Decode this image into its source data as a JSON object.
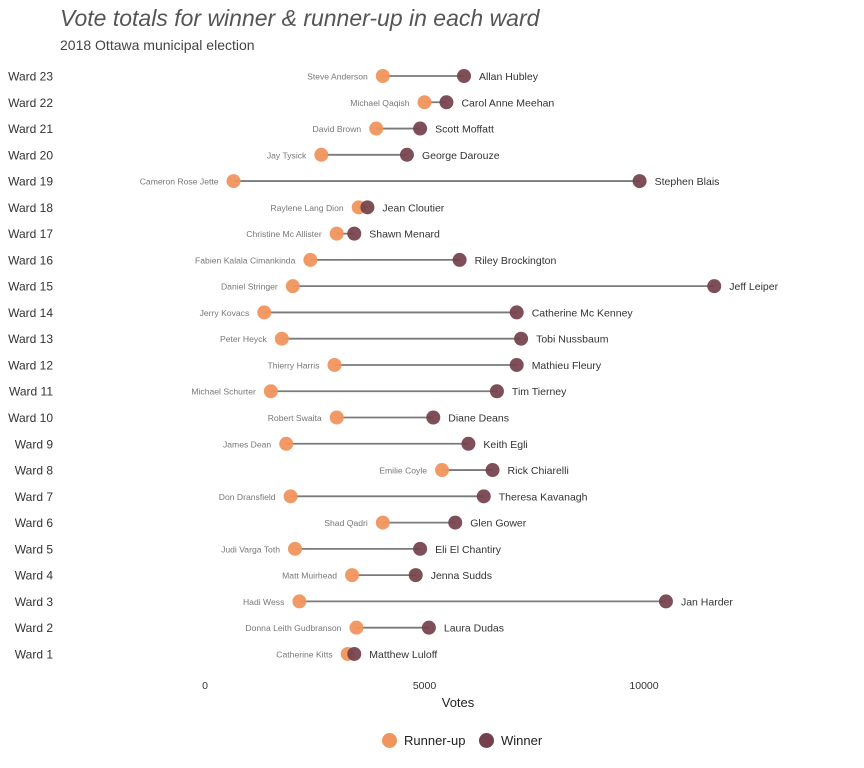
{
  "title": "Vote totals for winner & runner-up in each ward",
  "subtitle": "2018 Ottawa municipal election",
  "colors": {
    "runner_up": "#F0955E",
    "winner": "#74404B",
    "segment": "#7a7a7a",
    "ward_label": "#333333",
    "runner_label": "#777777",
    "winner_label": "#333333"
  },
  "legend": {
    "runner_up": "Runner-up",
    "winner": "Winner"
  },
  "chart_data": {
    "type": "dumbbell",
    "xlabel": "Votes",
    "ylabel": "",
    "xlim": [
      -4500,
      14500
    ],
    "xticks": [
      0,
      5000,
      10000
    ],
    "grid": false,
    "legend_position": "bottom",
    "series": [
      {
        "name": "Runner-up"
      },
      {
        "name": "Winner"
      }
    ],
    "wards": [
      {
        "ward": "Ward 23",
        "runner_up": "Steve Anderson",
        "runner_up_votes": 4050,
        "winner": "Allan Hubley",
        "winner_votes": 5900
      },
      {
        "ward": "Ward 22",
        "runner_up": "Michael Qaqish",
        "runner_up_votes": 5000,
        "winner": "Carol Anne Meehan",
        "winner_votes": 5500
      },
      {
        "ward": "Ward 21",
        "runner_up": "David Brown",
        "runner_up_votes": 3900,
        "winner": "Scott Moffatt",
        "winner_votes": 4900
      },
      {
        "ward": "Ward 20",
        "runner_up": "Jay Tysick",
        "runner_up_votes": 2650,
        "winner": "George Darouze",
        "winner_votes": 4600
      },
      {
        "ward": "Ward 19",
        "runner_up": "Cameron Rose Jette",
        "runner_up_votes": 650,
        "winner": "Stephen Blais",
        "winner_votes": 9900
      },
      {
        "ward": "Ward 18",
        "runner_up": "Raylene Lang Dion",
        "runner_up_votes": 3500,
        "winner": "Jean Cloutier",
        "winner_votes": 3700
      },
      {
        "ward": "Ward 17",
        "runner_up": "Christine Mc Allister",
        "runner_up_votes": 3000,
        "winner": "Shawn Menard",
        "winner_votes": 3400
      },
      {
        "ward": "Ward 16",
        "runner_up": "Fabien Kalala Cimankinda",
        "runner_up_votes": 2400,
        "winner": "Riley Brockington",
        "winner_votes": 5800
      },
      {
        "ward": "Ward 15",
        "runner_up": "Daniel Stringer",
        "runner_up_votes": 2000,
        "winner": "Jeff Leiper",
        "winner_votes": 11600
      },
      {
        "ward": "Ward 14",
        "runner_up": "Jerry Kovacs",
        "runner_up_votes": 1350,
        "winner": "Catherine Mc Kenney",
        "winner_votes": 7100
      },
      {
        "ward": "Ward 13",
        "runner_up": "Peter Heyck",
        "runner_up_votes": 1750,
        "winner": "Tobi Nussbaum",
        "winner_votes": 7200
      },
      {
        "ward": "Ward 12",
        "runner_up": "Thierry Harris",
        "runner_up_votes": 2950,
        "winner": "Mathieu Fleury",
        "winner_votes": 7100
      },
      {
        "ward": "Ward 11",
        "runner_up": "Michael Schurter",
        "runner_up_votes": 1500,
        "winner": "Tim Tierney",
        "winner_votes": 6650
      },
      {
        "ward": "Ward 10",
        "runner_up": "Robert Swaita",
        "runner_up_votes": 3000,
        "winner": "Diane Deans",
        "winner_votes": 5200
      },
      {
        "ward": "Ward 9",
        "runner_up": "James Dean",
        "runner_up_votes": 1850,
        "winner": "Keith Egli",
        "winner_votes": 6000
      },
      {
        "ward": "Ward 8",
        "runner_up": "Emilie Coyle",
        "runner_up_votes": 5400,
        "winner": "Rick Chiarelli",
        "winner_votes": 6550
      },
      {
        "ward": "Ward 7",
        "runner_up": "Don Dransfield",
        "runner_up_votes": 1950,
        "winner": "Theresa Kavanagh",
        "winner_votes": 6350
      },
      {
        "ward": "Ward 6",
        "runner_up": "Shad Qadri",
        "runner_up_votes": 4050,
        "winner": "Glen Gower",
        "winner_votes": 5700
      },
      {
        "ward": "Ward 5",
        "runner_up": "Judi Varga Toth",
        "runner_up_votes": 2050,
        "winner": "Eli El Chantiry",
        "winner_votes": 4900
      },
      {
        "ward": "Ward 4",
        "runner_up": "Matt Muirhead",
        "runner_up_votes": 3350,
        "winner": "Jenna Sudds",
        "winner_votes": 4800
      },
      {
        "ward": "Ward 3",
        "runner_up": "Hadi Wess",
        "runner_up_votes": 2150,
        "winner": "Jan Harder",
        "winner_votes": 10500
      },
      {
        "ward": "Ward 2",
        "runner_up": "Donna Leith Gudbranson",
        "runner_up_votes": 3450,
        "winner": "Laura Dudas",
        "winner_votes": 5100
      },
      {
        "ward": "Ward 1",
        "runner_up": "Catherine Kitts",
        "runner_up_votes": 3250,
        "winner": "Matthew Luloff",
        "winner_votes": 3400
      }
    ]
  }
}
